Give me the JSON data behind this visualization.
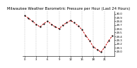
{
  "title": "Milwaukee Weather Barometric Pressure per Hour (Last 24 Hours)",
  "hours": [
    0,
    1,
    2,
    3,
    4,
    5,
    6,
    7,
    8,
    9,
    10,
    11,
    12,
    13,
    14,
    15,
    16,
    17,
    18,
    19,
    20,
    21,
    22,
    23
  ],
  "pressure": [
    29.95,
    29.88,
    29.8,
    29.72,
    29.65,
    29.74,
    29.8,
    29.72,
    29.65,
    29.6,
    29.7,
    29.76,
    29.82,
    29.76,
    29.68,
    29.58,
    29.42,
    29.28,
    29.12,
    29.05,
    28.98,
    29.12,
    29.28,
    29.42
  ],
  "line_color": "#cc0000",
  "marker_color": "#000000",
  "bg_color": "#ffffff",
  "grid_color": "#999999",
  "text_color": "#000000",
  "ylim_min": 28.87,
  "ylim_max": 30.07,
  "yticks": [
    29.0,
    29.1,
    29.2,
    29.3,
    29.4,
    29.5,
    29.6,
    29.7,
    29.8,
    29.9,
    30.0
  ],
  "ytick_labels": [
    "29.0",
    "29.1",
    "29.2",
    "29.3",
    "29.4",
    "29.5",
    "29.6",
    "29.7",
    "29.8",
    "29.9",
    "30.0"
  ],
  "xtick_positions": [
    0,
    3,
    6,
    9,
    12,
    15,
    18,
    21
  ],
  "xtick_labels": [
    "0",
    "3",
    "6",
    "9",
    "12",
    "15",
    "18",
    "21"
  ],
  "title_fontsize": 3.8,
  "tick_fontsize": 2.8,
  "lw": 0.7,
  "marker_size": 1.2
}
